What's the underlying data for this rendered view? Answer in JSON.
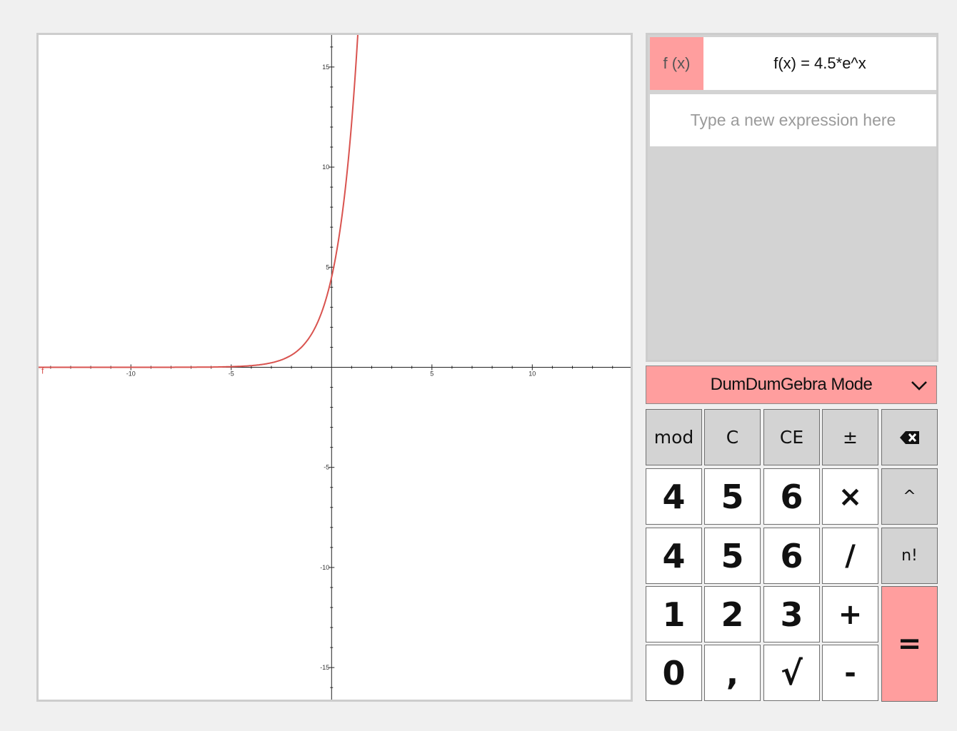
{
  "expression_list": {
    "fx_label": "f (x)",
    "expression": "f(x) = 4.5*e^x",
    "new_expression_placeholder": "Type a new expression here"
  },
  "mode_select": {
    "label": "DumDumGebra Mode",
    "icon": "chevron-down-icon"
  },
  "keypad": {
    "row1": [
      "mod",
      "C",
      "CE",
      "±",
      "⌫"
    ],
    "row2": [
      "4",
      "5",
      "6",
      "×",
      "^"
    ],
    "row3": [
      "4",
      "5",
      "6",
      "/",
      "n!"
    ],
    "row4": [
      "1",
      "2",
      "3",
      "+"
    ],
    "row5": [
      "0",
      ",",
      "√",
      "-"
    ],
    "equals": "="
  },
  "chart_data": {
    "type": "line",
    "function_label": "f",
    "series": [
      {
        "name": "f",
        "expression": "4.5*e^x",
        "color": "#d9534f"
      }
    ],
    "xlim": [
      -14.6,
      14.9
    ],
    "ylim": [
      -16.6,
      16.6
    ],
    "x_ticks": [
      "-10",
      "-5",
      "5",
      "10"
    ],
    "y_ticks": [
      "15",
      "10",
      "5",
      "-5",
      "-10",
      "-15"
    ],
    "grid": false
  },
  "colors": {
    "accent": "#ff9e9e",
    "curve": "#d9534f",
    "panel_gray": "#d3d3d3"
  }
}
